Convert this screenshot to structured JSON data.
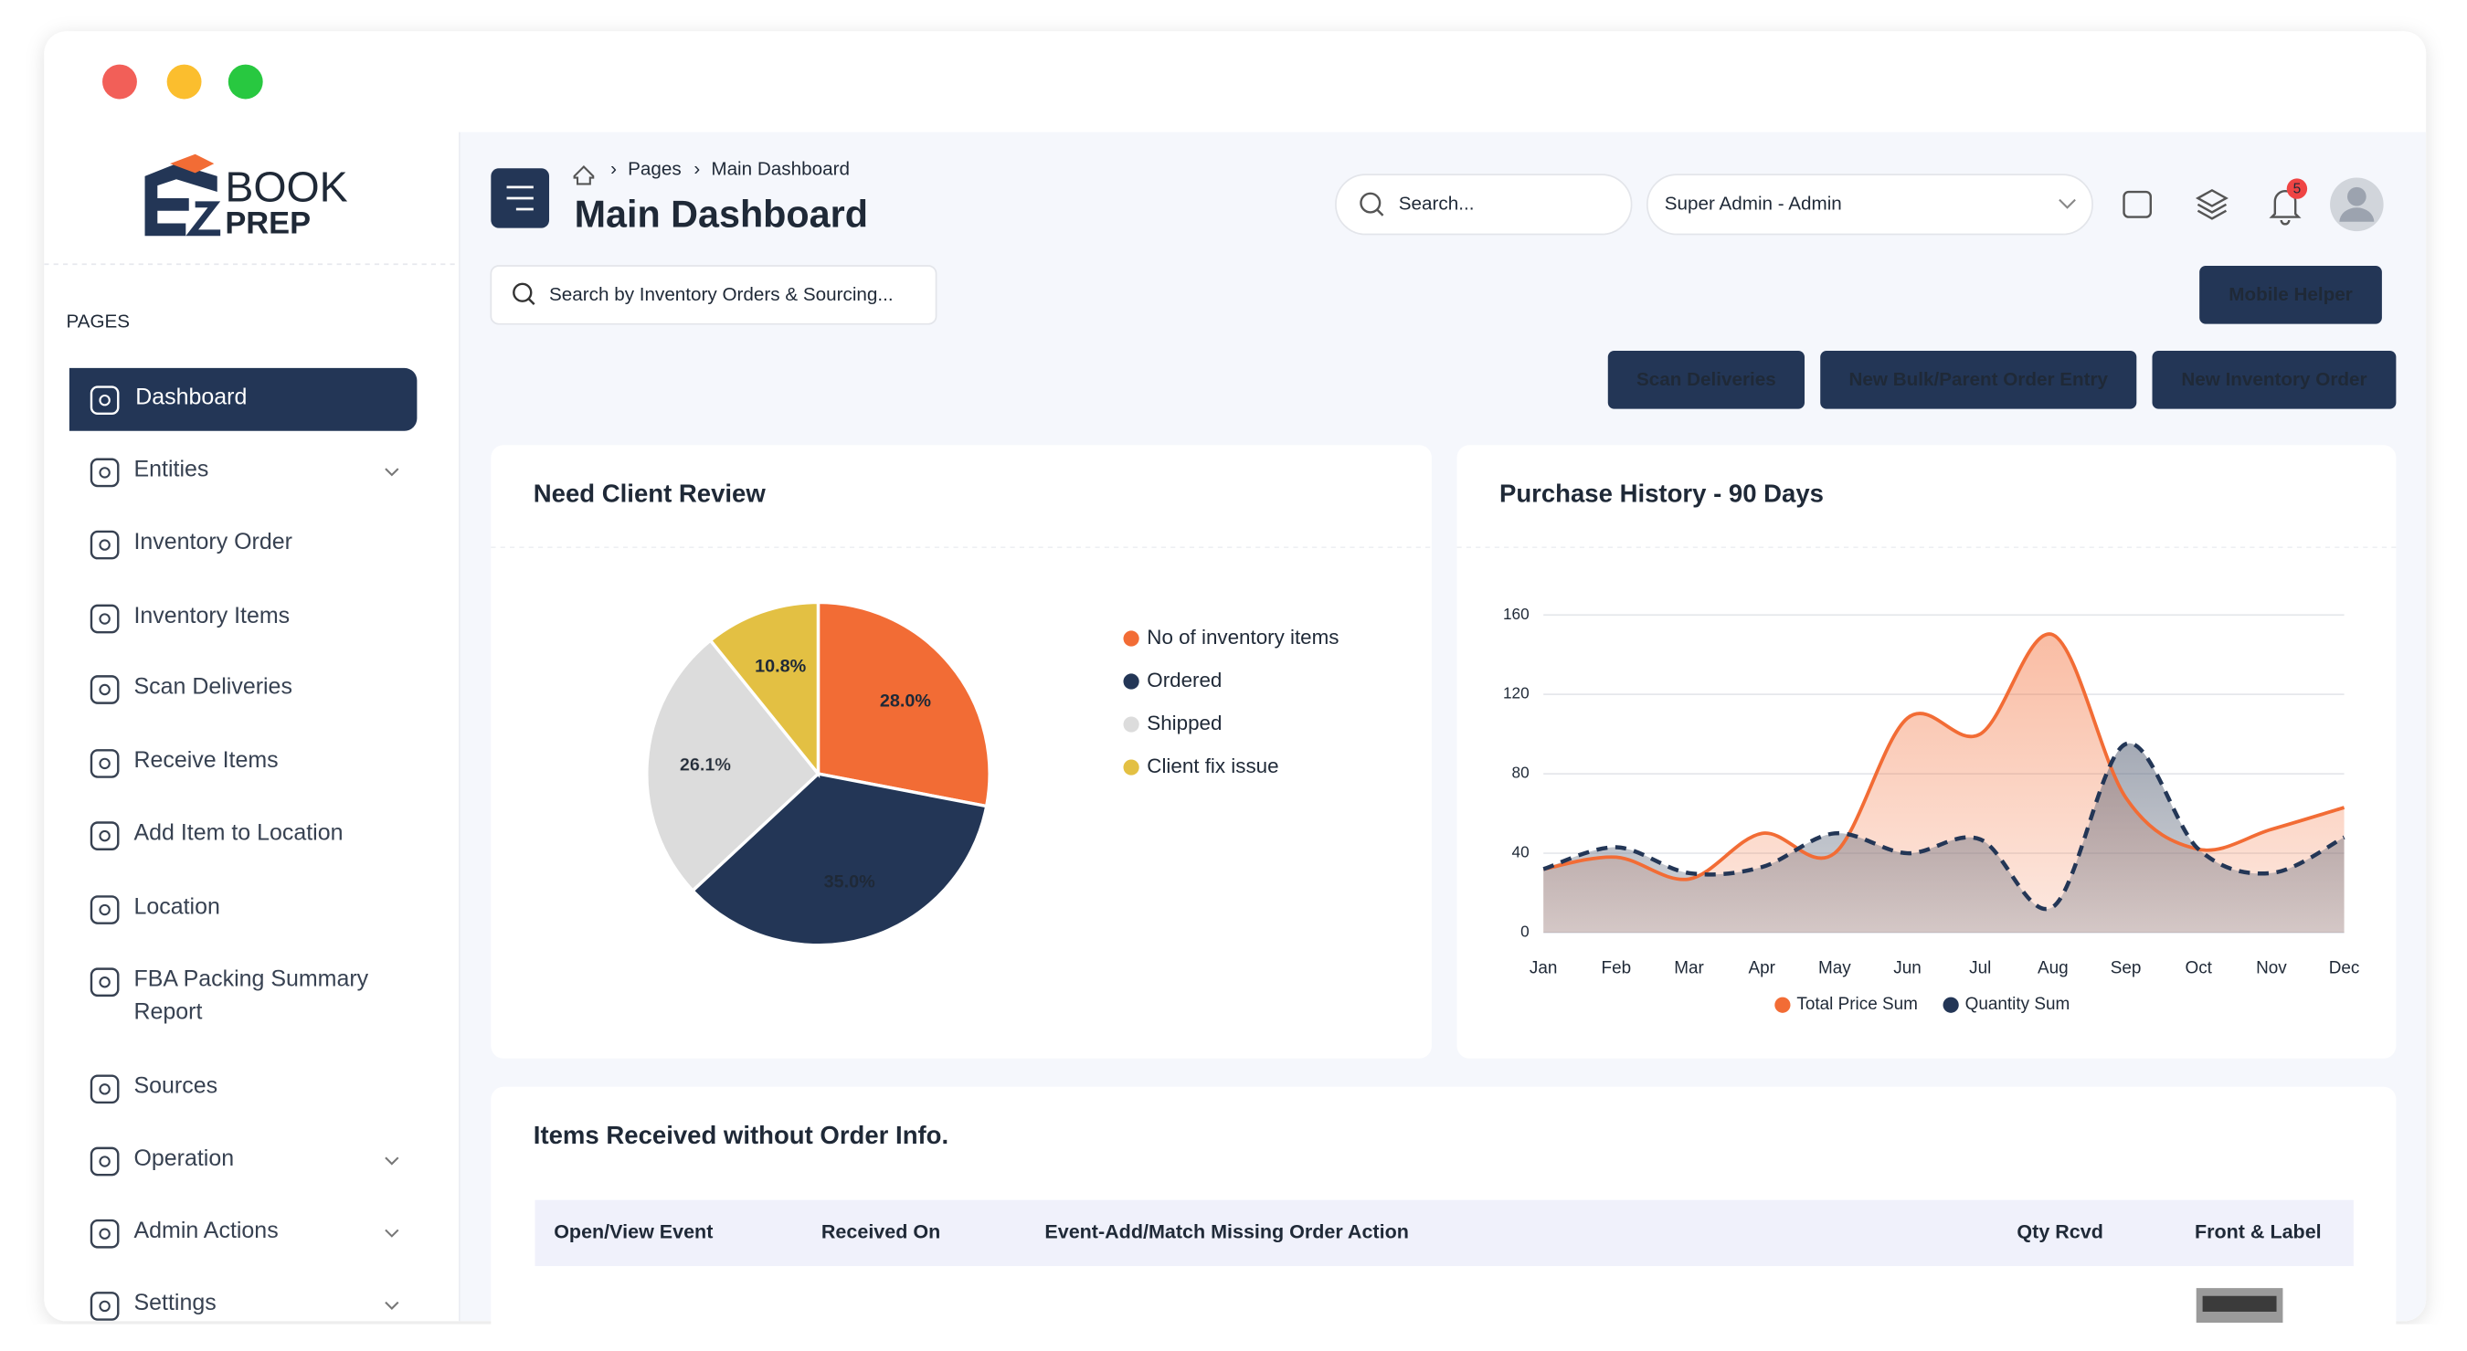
{
  "brand": {
    "top": "BOOK",
    "bottom": "PREP"
  },
  "sidebar": {
    "section": "PAGES",
    "items": [
      {
        "label": "Dashboard",
        "active": true
      },
      {
        "label": "Entities",
        "expandable": true
      },
      {
        "label": "Inventory Order"
      },
      {
        "label": "Inventory Items"
      },
      {
        "label": "Scan Deliveries"
      },
      {
        "label": "Receive Items"
      },
      {
        "label": "Add Item to Location"
      },
      {
        "label": "Location"
      },
      {
        "label": "FBA Packing Summary Report"
      },
      {
        "label": "Sources"
      },
      {
        "label": "Operation",
        "expandable": true
      },
      {
        "label": "Admin Actions",
        "expandable": true
      },
      {
        "label": "Settings",
        "expandable": true
      }
    ]
  },
  "header": {
    "breadcrumb": [
      "Pages",
      "Main Dashboard"
    ],
    "title": "Main Dashboard",
    "search_placeholder": "Search...",
    "role": "Super Admin - Admin",
    "notifications": "5",
    "inventory_search_placeholder": "Search by Inventory Orders & Sourcing..."
  },
  "buttons": {
    "mobile_helper": "Mobile Helper",
    "actions": [
      "Scan Deliveries",
      "New Bulk/Parent Order Entry",
      "New Inventory Order"
    ]
  },
  "chart_data": [
    {
      "type": "pie",
      "title": "Need Client Review",
      "categories": [
        "No of inventory items",
        "Ordered",
        "Shipped",
        "Client fix issue"
      ],
      "values": [
        28.0,
        35.0,
        26.1,
        10.8
      ],
      "value_labels": [
        "28.0%",
        "35.0%",
        "26.1%",
        "10.8%"
      ],
      "colors": [
        "#f26c35",
        "#233656",
        "#dcdcdc",
        "#e3c043"
      ]
    },
    {
      "type": "line",
      "title": "Purchase History - 90 Days",
      "categories": [
        "Jan",
        "Feb",
        "Mar",
        "Apr",
        "May",
        "Jun",
        "Jul",
        "Aug",
        "Sep",
        "Oct",
        "Nov",
        "Dec"
      ],
      "series": [
        {
          "name": "Total Price Sum",
          "color": "#f26c35",
          "style": "solid",
          "values": [
            32,
            38,
            27,
            50,
            40,
            108,
            100,
            150,
            68,
            42,
            52,
            63
          ]
        },
        {
          "name": "Quantity Sum",
          "color": "#233656",
          "style": "dashed",
          "values": [
            32,
            43,
            30,
            33,
            50,
            40,
            47,
            13,
            95,
            42,
            30,
            48
          ]
        }
      ],
      "ylim": [
        0,
        160
      ],
      "yticks": [
        0,
        40,
        80,
        120,
        160
      ],
      "grid": true
    }
  ],
  "table": {
    "title": "Items Received without Order Info.",
    "columns": [
      "Open/View Event",
      "Received On",
      "Event-Add/Match Missing Order Action",
      "Qty Rcvd",
      "Front & Label"
    ]
  }
}
